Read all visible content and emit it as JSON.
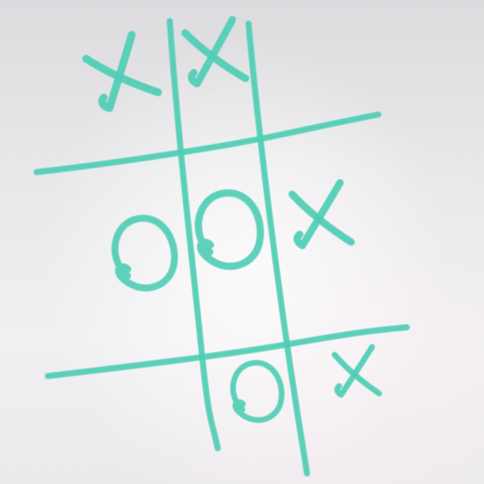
{
  "game": {
    "name": "tic-tac-toe",
    "surface": "whiteboard",
    "ink_color": "#4fcdb5",
    "board": [
      [
        "X",
        "X",
        ""
      ],
      [
        "O",
        "O",
        "X"
      ],
      [
        "",
        "O",
        "X"
      ]
    ]
  }
}
